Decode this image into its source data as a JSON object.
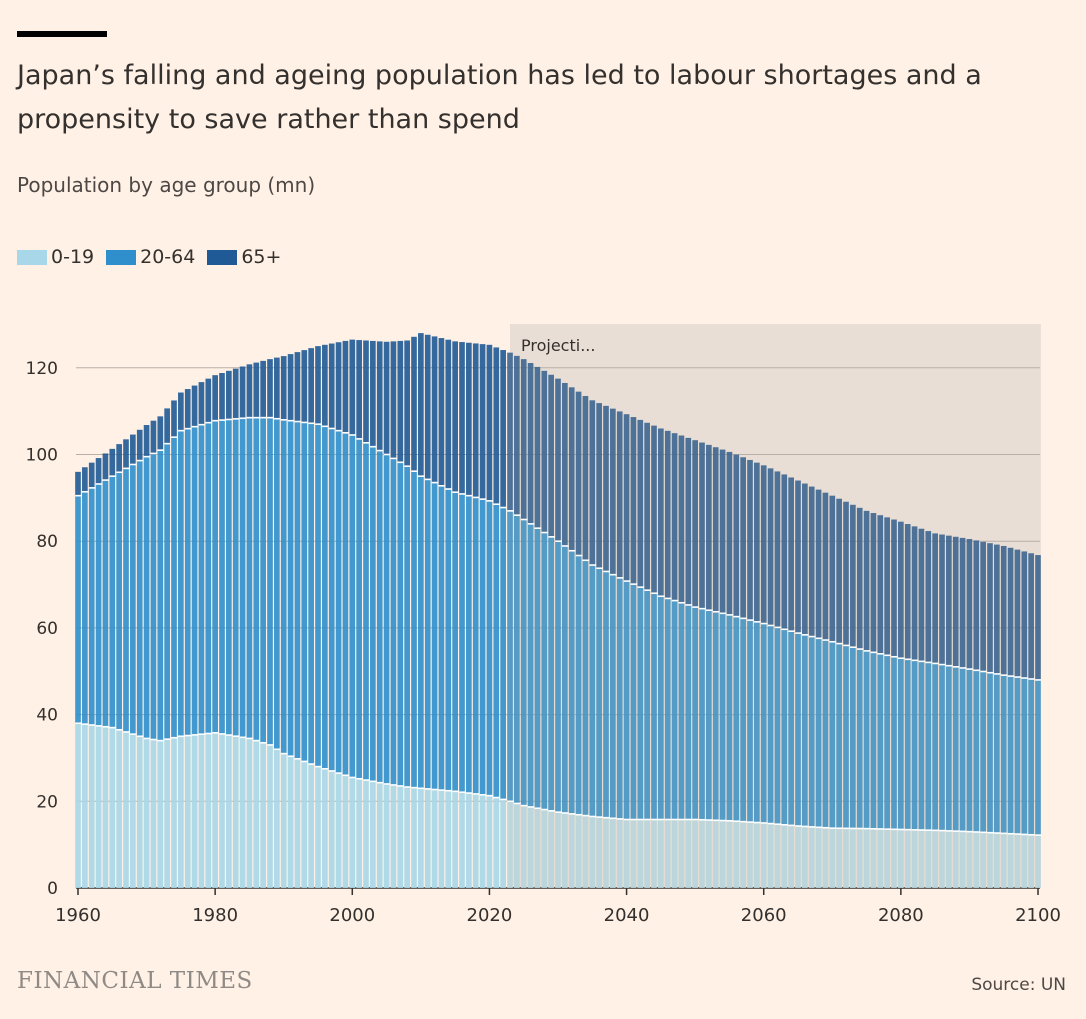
{
  "header": {
    "title": "Japan’s falling and ageing population has led to labour shortages and a propensity to save rather than spend",
    "subtitle": "Population by age group (mn)"
  },
  "legend": [
    {
      "label": "0-19",
      "color": "#A7D7E8"
    },
    {
      "label": "20-64",
      "color": "#2E8FCC"
    },
    {
      "label": "65+",
      "color": "#1F5A96"
    }
  ],
  "footer": {
    "brand": "FINANCIAL TIMES",
    "source": "Source: UN"
  },
  "chart_data": {
    "type": "bar",
    "stacked": true,
    "x_start": 1960,
    "x_end": 2100,
    "xticks": [
      1960,
      1980,
      2000,
      2020,
      2040,
      2060,
      2080,
      2100
    ],
    "yticks": [
      0,
      20,
      40,
      60,
      80,
      100,
      120
    ],
    "ylim": [
      0,
      130
    ],
    "grid": true,
    "projection": {
      "label": "Projecti...",
      "from": 2023,
      "to": 2100,
      "color": "#E9DED5"
    },
    "anchors": {
      "years": [
        1960,
        1965,
        1970,
        1972,
        1975,
        1980,
        1985,
        1988,
        1990,
        1995,
        2000,
        2005,
        2008,
        2010,
        2015,
        2020,
        2023,
        2025,
        2030,
        2035,
        2040,
        2045,
        2050,
        2055,
        2060,
        2065,
        2070,
        2075,
        2080,
        2085,
        2090,
        2095,
        2100
      ],
      "age_0_19": [
        38.0,
        37.0,
        34.5,
        34.0,
        35.0,
        35.8,
        34.5,
        33.0,
        31.0,
        28.0,
        25.5,
        24.0,
        23.3,
        23.0,
        22.3,
        21.3,
        20.0,
        19.0,
        17.5,
        16.5,
        15.8,
        15.8,
        15.8,
        15.5,
        15.0,
        14.3,
        13.8,
        13.7,
        13.5,
        13.3,
        13.0,
        12.6,
        12.2
      ],
      "age_20_64": [
        52.5,
        58.0,
        65.0,
        67.0,
        70.5,
        72.0,
        74.0,
        75.5,
        77.0,
        79.0,
        79.0,
        76.0,
        74.0,
        72.0,
        69.0,
        68.0,
        67.0,
        66.0,
        62.5,
        58.0,
        55.0,
        51.5,
        49.0,
        47.5,
        46.0,
        44.5,
        43.0,
        41.0,
        39.5,
        38.5,
        37.5,
        36.5,
        35.8
      ],
      "age_65_plus": [
        5.5,
        6.3,
        7.3,
        7.8,
        8.8,
        10.5,
        12.3,
        13.5,
        14.7,
        18.0,
        22.0,
        26.0,
        29.0,
        33.0,
        34.8,
        36.0,
        36.5,
        37.0,
        37.5,
        38.0,
        38.5,
        38.7,
        38.5,
        37.6,
        36.5,
        35.2,
        33.7,
        32.3,
        31.5,
        30.0,
        30.0,
        29.8,
        28.8
      ]
    }
  }
}
